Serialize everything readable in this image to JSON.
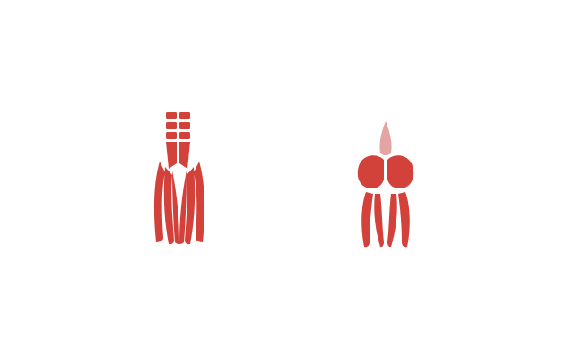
{
  "colors": {
    "background": "#ffffff",
    "muscle_active": "#d2413a",
    "muscle_secondary": "#e2a5a3"
  },
  "figures": [
    {
      "name": "front-view",
      "icon": "torso-legs-front-muscle-icon",
      "highlighted": [
        "abdominals",
        "obliques",
        "quadriceps"
      ]
    },
    {
      "name": "back-view",
      "icon": "glutes-hamstrings-back-muscle-icon",
      "highlighted": [
        "glutes",
        "hamstrings"
      ],
      "secondary": [
        "lower-back"
      ]
    }
  ]
}
